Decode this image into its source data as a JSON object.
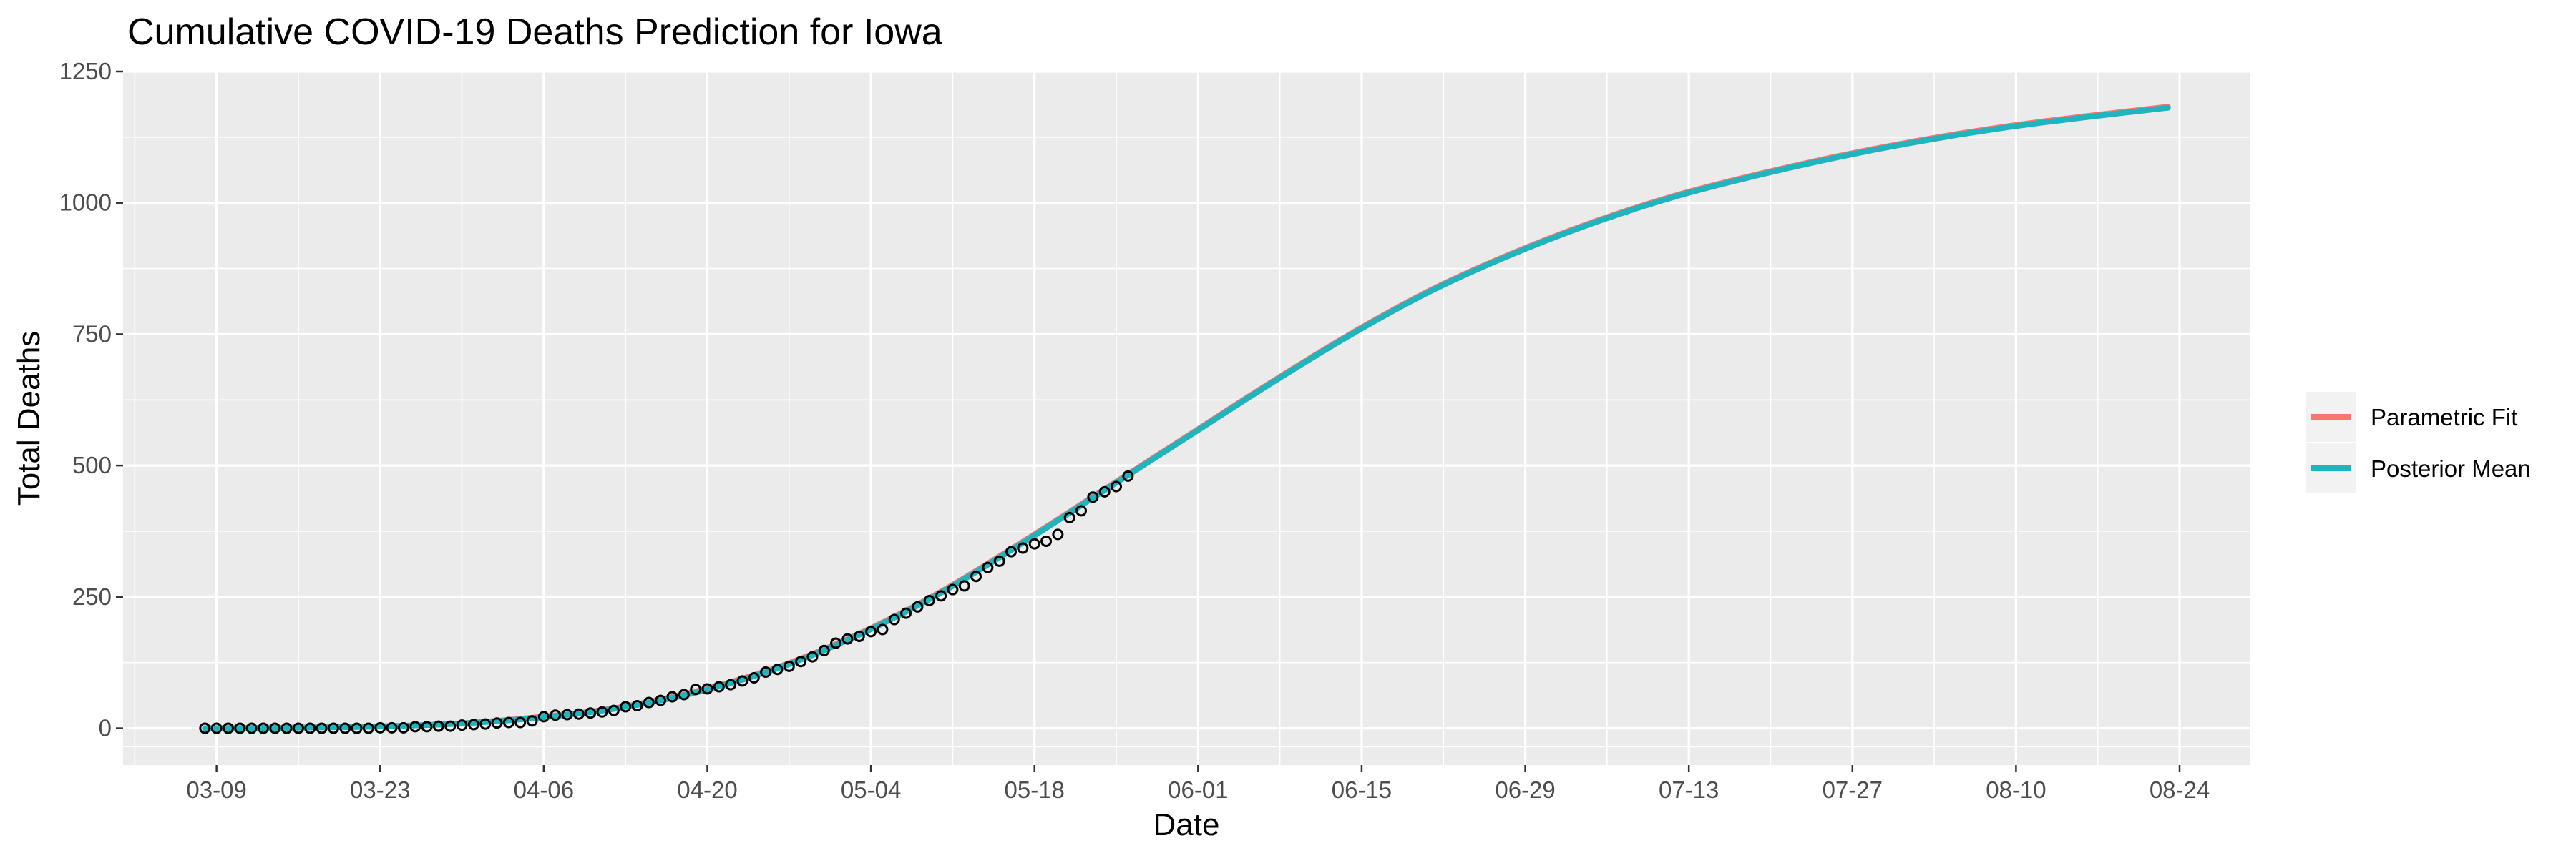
{
  "chart_data": {
    "type": "line",
    "title": "Cumulative COVID-19 Deaths Prediction for Iowa",
    "xlabel": "Date",
    "ylabel": "Total Deaths",
    "x_axis": {
      "type": "date",
      "tick_labels": [
        "03-09",
        "03-23",
        "04-06",
        "04-20",
        "05-04",
        "05-18",
        "06-01",
        "06-15",
        "06-29",
        "07-13",
        "07-27",
        "08-10",
        "08-24"
      ],
      "range": [
        "2020-03-01",
        "2020-08-30"
      ]
    },
    "y_axis": {
      "ticks": [
        0,
        250,
        500,
        750,
        1000,
        1250
      ],
      "range": [
        -70,
        1250
      ]
    },
    "grid": true,
    "legend": {
      "placement": "right",
      "entries": [
        "Parametric Fit",
        "Posterior Mean"
      ]
    },
    "series": [
      {
        "name": "Parametric Fit",
        "type": "line",
        "color": "#F8766D",
        "x": [
          "2020-03-08",
          "2020-03-15",
          "2020-03-22",
          "2020-03-29",
          "2020-04-05",
          "2020-04-12",
          "2020-04-19",
          "2020-04-26",
          "2020-05-03",
          "2020-05-10",
          "2020-05-17",
          "2020-05-24",
          "2020-05-31",
          "2020-06-07",
          "2020-06-14",
          "2020-06-21",
          "2020-06-28",
          "2020-07-05",
          "2020-07-12",
          "2020-07-19",
          "2020-07-26",
          "2020-08-02",
          "2020-08-09",
          "2020-08-16",
          "2020-08-23"
        ],
        "y": [
          0,
          1,
          3,
          8,
          20,
          38,
          70,
          116,
          180,
          260,
          355,
          455,
          555,
          655,
          750,
          835,
          905,
          965,
          1015,
          1055,
          1090,
          1120,
          1145,
          1165,
          1183
        ]
      },
      {
        "name": "Posterior Mean",
        "type": "line",
        "color": "#1FB5BE",
        "x": [
          "2020-03-08",
          "2020-03-15",
          "2020-03-22",
          "2020-03-29",
          "2020-04-05",
          "2020-04-12",
          "2020-04-19",
          "2020-04-26",
          "2020-05-03",
          "2020-05-10",
          "2020-05-17",
          "2020-05-24",
          "2020-05-31",
          "2020-06-07",
          "2020-06-14",
          "2020-06-21",
          "2020-06-28",
          "2020-07-05",
          "2020-07-12",
          "2020-07-19",
          "2020-07-26",
          "2020-08-02",
          "2020-08-09",
          "2020-08-16",
          "2020-08-23"
        ],
        "y": [
          0,
          1,
          3,
          8,
          19,
          37,
          68,
          114,
          178,
          258,
          353,
          453,
          553,
          653,
          748,
          833,
          903,
          963,
          1013,
          1053,
          1088,
          1118,
          1143,
          1163,
          1181
        ]
      },
      {
        "name": "",
        "type": "scatter",
        "x": [
          "2020-03-08",
          "2020-03-09",
          "2020-03-10",
          "2020-03-11",
          "2020-03-12",
          "2020-03-13",
          "2020-03-14",
          "2020-03-15",
          "2020-03-16",
          "2020-03-17",
          "2020-03-18",
          "2020-03-19",
          "2020-03-20",
          "2020-03-21",
          "2020-03-22",
          "2020-03-23",
          "2020-03-24",
          "2020-03-25",
          "2020-03-26",
          "2020-03-27",
          "2020-03-28",
          "2020-03-29",
          "2020-03-30",
          "2020-03-31",
          "2020-04-01",
          "2020-04-02",
          "2020-04-03",
          "2020-04-04",
          "2020-04-05",
          "2020-04-06",
          "2020-04-07",
          "2020-04-08",
          "2020-04-09",
          "2020-04-10",
          "2020-04-11",
          "2020-04-12",
          "2020-04-13",
          "2020-04-14",
          "2020-04-15",
          "2020-04-16",
          "2020-04-17",
          "2020-04-18",
          "2020-04-19",
          "2020-04-20",
          "2020-04-21",
          "2020-04-22",
          "2020-04-23",
          "2020-04-24",
          "2020-04-25",
          "2020-04-26",
          "2020-04-27",
          "2020-04-28",
          "2020-04-29",
          "2020-04-30",
          "2020-05-01",
          "2020-05-02",
          "2020-05-03",
          "2020-05-04",
          "2020-05-05",
          "2020-05-06",
          "2020-05-07",
          "2020-05-08",
          "2020-05-09",
          "2020-05-10",
          "2020-05-11",
          "2020-05-12",
          "2020-05-13",
          "2020-05-14",
          "2020-05-15",
          "2020-05-16",
          "2020-05-17",
          "2020-05-18",
          "2020-05-19",
          "2020-05-20",
          "2020-05-21",
          "2020-05-22",
          "2020-05-23",
          "2020-05-24",
          "2020-05-25",
          "2020-05-26"
        ],
        "y": [
          0,
          0,
          0,
          0,
          0,
          0,
          0,
          0,
          0,
          0,
          0,
          0,
          0,
          0,
          0,
          1,
          1,
          1,
          3,
          3,
          4,
          4,
          6,
          7,
          8,
          10,
          11,
          11,
          14,
          22,
          25,
          26,
          27,
          29,
          31,
          34,
          41,
          43,
          49,
          53,
          60,
          64,
          74,
          75,
          79,
          83,
          90,
          96,
          107,
          112,
          118,
          127,
          136,
          148,
          162,
          170,
          175,
          184,
          188,
          207,
          219,
          231,
          243,
          252,
          264,
          271,
          289,
          306,
          318,
          336,
          343,
          351,
          356,
          369,
          401,
          414,
          440,
          450,
          460,
          480
        ]
      }
    ]
  }
}
